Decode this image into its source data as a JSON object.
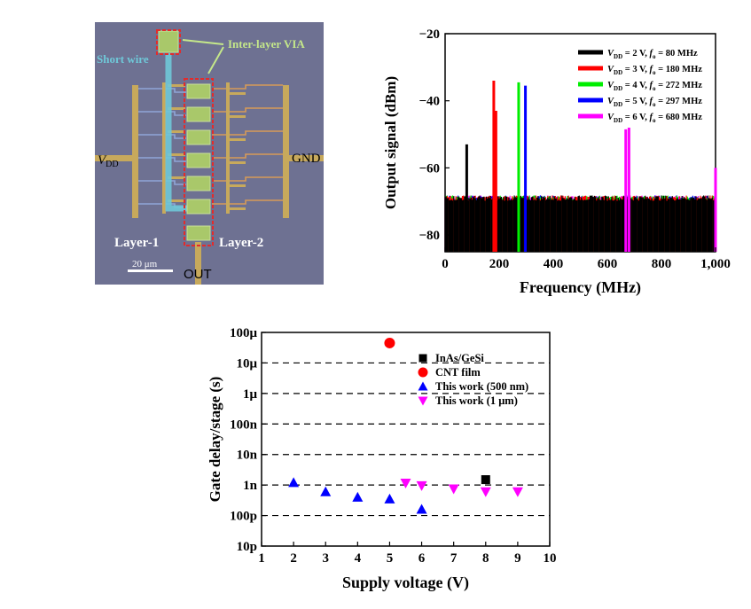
{
  "micrograph": {
    "labels": {
      "via": "Inter-layer VIA",
      "short_wire": "Short wire",
      "vdd_main": "V",
      "vdd_sub": "DD",
      "gnd": "GND",
      "layer1": "Layer-1",
      "layer2": "Layer-2",
      "out": "OUT",
      "scale": "20 μm"
    },
    "colors": {
      "background": "#6e7192",
      "metal": "#c7a95c",
      "via_fill": "#a9c86a",
      "short_wire": "#6fc8d8",
      "annotation": "#c5e88a",
      "box": "#e32b2b"
    }
  },
  "chart_data": [
    {
      "type": "line",
      "id": "spectrum",
      "xlabel": "Frequency (MHz)",
      "ylabel": "Output signal (dBm)",
      "xlim": [
        0,
        1000
      ],
      "ylim": [
        -85,
        -20
      ],
      "xticks": [
        0,
        200,
        400,
        600,
        800,
        1000
      ],
      "xtick_labels": [
        "0",
        "200",
        "400",
        "600",
        "800",
        "1,000"
      ],
      "yticks": [
        -80,
        -60,
        -40,
        -20
      ],
      "ytick_labels": [
        "−80",
        "−60",
        "−40",
        "−20"
      ],
      "noise_floor": -69,
      "series": [
        {
          "name": "V_DD = 2 V, f_o = 80 MHz",
          "legend": {
            "main": "V",
            "sub": "DD",
            "rest": " = 2 V, ",
            "f": "f",
            "fsub": "o",
            "tail": " = 80 MHz"
          },
          "color": "#000000",
          "peaks": [
            {
              "x": 80,
              "y": -53
            }
          ]
        },
        {
          "name": "V_DD = 3 V, f_o = 180 MHz",
          "legend": {
            "main": "V",
            "sub": "DD",
            "rest": " = 3 V, ",
            "f": "f",
            "fsub": "o",
            "tail": " = 180 MHz"
          },
          "color": "#ff0000",
          "peaks": [
            {
              "x": 180,
              "y": -34
            },
            {
              "x": 188,
              "y": -43
            }
          ]
        },
        {
          "name": "V_DD = 4 V, f_o = 272 MHz",
          "legend": {
            "main": "V",
            "sub": "DD",
            "rest": " = 4 V, ",
            "f": "f",
            "fsub": "o",
            "tail": " = 272 MHz"
          },
          "color": "#00ee00",
          "peaks": [
            {
              "x": 272,
              "y": -34.5
            }
          ]
        },
        {
          "name": "V_DD = 5 V, f_o = 297 MHz",
          "legend": {
            "main": "V",
            "sub": "DD",
            "rest": " = 5 V, ",
            "f": "f",
            "fsub": "o",
            "tail": " = 297 MHz"
          },
          "color": "#0000ff",
          "peaks": [
            {
              "x": 297,
              "y": -35.5
            }
          ]
        },
        {
          "name": "V_DD = 6 V, f_o = 680 MHz",
          "legend": {
            "main": "V",
            "sub": "DD",
            "rest": " = 6 V, ",
            "f": "f",
            "fsub": "o",
            "tail": " = 680 MHz"
          },
          "color": "#ff00ff",
          "peaks": [
            {
              "x": 668,
              "y": -48.5
            },
            {
              "x": 680,
              "y": -48
            },
            {
              "x": 1000,
              "y": -60
            }
          ]
        }
      ]
    },
    {
      "type": "scatter",
      "id": "gate_delay",
      "xlabel": "Supply voltage (V)",
      "ylabel": "Gate delay/stage (s)",
      "xlim": [
        1,
        10
      ],
      "xticks": [
        1,
        2,
        3,
        4,
        5,
        6,
        7,
        8,
        9,
        10
      ],
      "ylim_log10": [
        -11,
        -4
      ],
      "yticks_log10": [
        -11,
        -10,
        -9,
        -8,
        -7,
        -6,
        -5,
        -4
      ],
      "ytick_labels": [
        "10p",
        "100p",
        "1n",
        "10n",
        "100n",
        "1μ",
        "10μ",
        "100μ"
      ],
      "grid": "dashed horizontal",
      "legend_position": "top-right",
      "series": [
        {
          "name": "InAs/GeSi",
          "marker": "square",
          "color": "#000000",
          "points": [
            [
              8,
              1.5e-09
            ]
          ]
        },
        {
          "name": "CNT film",
          "marker": "circle",
          "color": "#ff0000",
          "points": [
            [
              5,
              4.5e-05
            ]
          ]
        },
        {
          "name": "This work (500 nm)",
          "marker": "triangle-up",
          "color": "#0000ff",
          "points": [
            [
              2,
              1.2e-09
            ],
            [
              3,
              6e-10
            ],
            [
              4,
              4e-10
            ],
            [
              5,
              3.5e-10
            ],
            [
              6,
              1.6e-10
            ]
          ]
        },
        {
          "name": "This work (1 μm)",
          "marker": "triangle-down",
          "color": "#ff00ff",
          "points": [
            [
              5.5,
              1.15e-09
            ],
            [
              6,
              9.5e-10
            ],
            [
              7,
              7.5e-10
            ],
            [
              8,
              6e-10
            ],
            [
              9,
              6e-10
            ]
          ]
        }
      ]
    }
  ]
}
